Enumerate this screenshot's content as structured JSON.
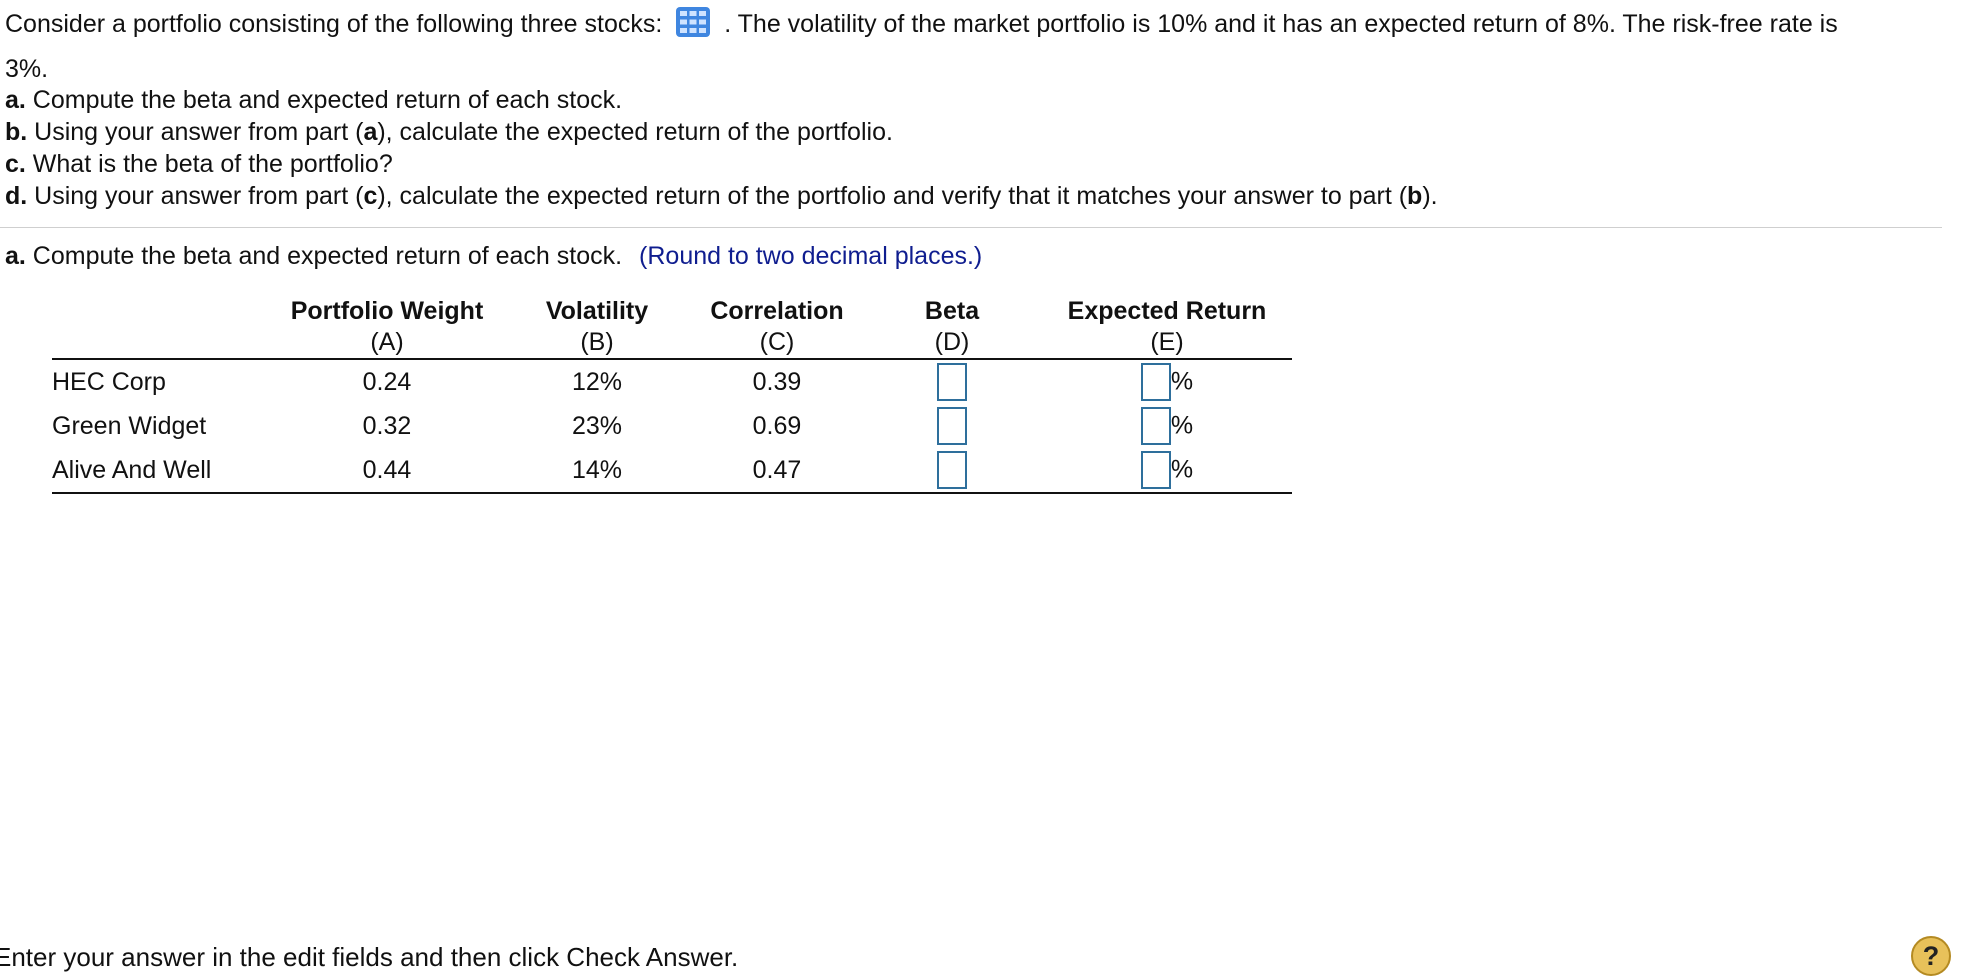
{
  "intro": {
    "before_icon": "Consider a portfolio consisting of the following three stocks:",
    "after_icon": ". The volatility of the market portfolio is 10% and it has an expected return of 8%. The risk-free rate is",
    "wrap": "3%.",
    "icon": "data-table-icon"
  },
  "parts": [
    {
      "letter": "a.",
      "text": " Compute the beta and expected return of each stock."
    },
    {
      "letter": "b.",
      "text_a": " Using your answer from part (",
      "ref": "a",
      "text_b": "), calculate the expected return of the portfolio."
    },
    {
      "letter": "c.",
      "text": " What is the beta of the portfolio?"
    },
    {
      "letter": "d.",
      "text_a": " Using your answer from part (",
      "ref": "c",
      "text_b": "), calculate the expected return of the portfolio and verify that it matches your answer to part (",
      "ref2": "b",
      "text_c": ")."
    }
  ],
  "question": {
    "letter": "a.",
    "text": " Compute the beta and expected return of each stock.",
    "hint": "(Round to two decimal places.)"
  },
  "table": {
    "headers": [
      "Portfolio Weight",
      "Volatility",
      "Correlation",
      "Beta",
      "Expected Return"
    ],
    "subheaders": [
      "(A)",
      "(B)",
      "(C)",
      "(D)",
      "(E)"
    ],
    "rows": [
      {
        "name": "HEC Corp",
        "weight": "0.24",
        "volatility": "12%",
        "correlation": "0.39",
        "beta": "",
        "expected_return": ""
      },
      {
        "name": "Green Widget",
        "weight": "0.32",
        "volatility": "23%",
        "correlation": "0.69",
        "beta": "",
        "expected_return": ""
      },
      {
        "name": "Alive And Well",
        "weight": "0.44",
        "volatility": "14%",
        "correlation": "0.47",
        "beta": "",
        "expected_return": ""
      }
    ],
    "unit": "%"
  },
  "footer": "Enter your answer in the edit fields and then click Check Answer.",
  "help_label": "?",
  "colors": {
    "hint": "#0f1d8f",
    "input_border": "#2e6f9c",
    "help": "#e8c15a"
  }
}
